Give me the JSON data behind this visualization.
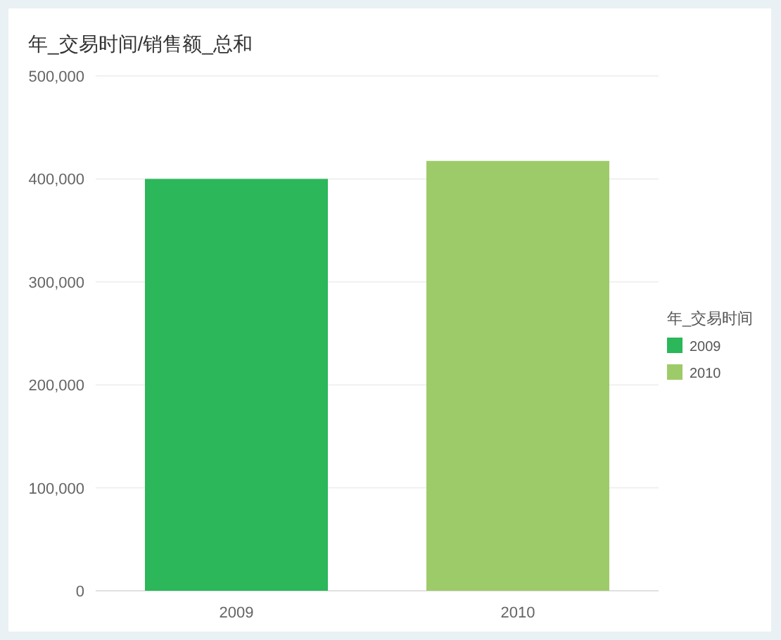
{
  "chart_data": {
    "type": "bar",
    "title": "年_交易时间/销售额_总和",
    "legend_title": "年_交易时间",
    "categories": [
      "2009",
      "2010"
    ],
    "series": [
      {
        "name": "2009",
        "color": "#2bb75a",
        "values": [
          400000,
          null
        ]
      },
      {
        "name": "2010",
        "color": "#9ecb69",
        "values": [
          null,
          417500
        ]
      }
    ],
    "ylim": [
      0,
      500000
    ],
    "yticks": [
      {
        "value": 0,
        "label": "0"
      },
      {
        "value": 100000,
        "label": "100,000"
      },
      {
        "value": 200000,
        "label": "200,000"
      },
      {
        "value": 300000,
        "label": "300,000"
      },
      {
        "value": 400000,
        "label": "400,000"
      },
      {
        "value": 500000,
        "label": "500,000"
      }
    ],
    "grid": "y",
    "legend": "right"
  }
}
